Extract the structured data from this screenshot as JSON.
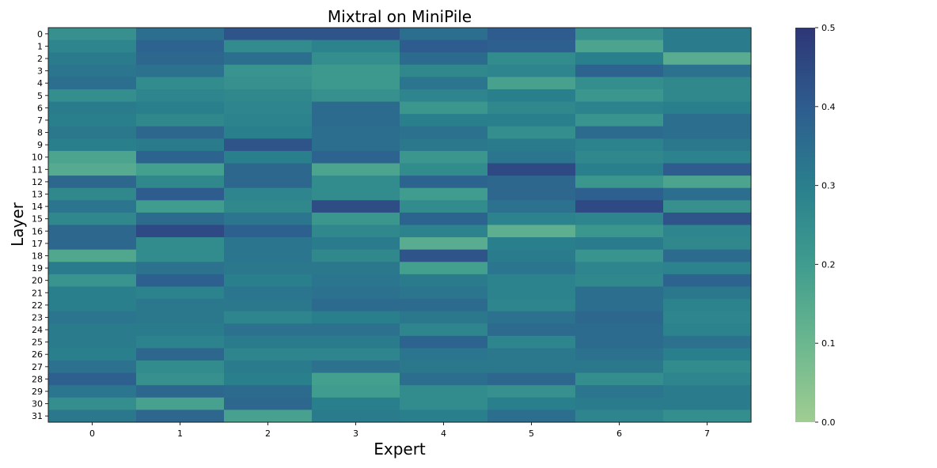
{
  "chart_data": {
    "type": "heatmap",
    "title": "Mixtral on MiniPile",
    "xlabel": "Expert",
    "ylabel": "Layer",
    "x_categories": [
      "0",
      "1",
      "2",
      "3",
      "4",
      "5",
      "6",
      "7"
    ],
    "y_categories": [
      "0",
      "1",
      "2",
      "3",
      "4",
      "5",
      "6",
      "7",
      "8",
      "9",
      "10",
      "11",
      "12",
      "13",
      "14",
      "15",
      "16",
      "17",
      "18",
      "19",
      "20",
      "21",
      "22",
      "23",
      "24",
      "25",
      "26",
      "27",
      "28",
      "29",
      "30",
      "31"
    ],
    "colorscale": {
      "min": 0.0,
      "max": 0.5,
      "ticks": [
        "0.0",
        "0.1",
        "0.2",
        "0.3",
        "0.4",
        "0.5"
      ],
      "low_color": "#a0cd91",
      "high_color": "#2e3676"
    },
    "values": [
      [
        0.24,
        0.35,
        0.42,
        0.42,
        0.35,
        0.4,
        0.24,
        0.31
      ],
      [
        0.28,
        0.38,
        0.26,
        0.29,
        0.4,
        0.39,
        0.17,
        0.31
      ],
      [
        0.31,
        0.37,
        0.35,
        0.25,
        0.36,
        0.26,
        0.3,
        0.14
      ],
      [
        0.33,
        0.34,
        0.23,
        0.21,
        0.27,
        0.28,
        0.38,
        0.34
      ],
      [
        0.35,
        0.26,
        0.24,
        0.21,
        0.33,
        0.18,
        0.25,
        0.27
      ],
      [
        0.25,
        0.28,
        0.27,
        0.24,
        0.28,
        0.3,
        0.22,
        0.27
      ],
      [
        0.31,
        0.3,
        0.28,
        0.36,
        0.22,
        0.27,
        0.29,
        0.3
      ],
      [
        0.3,
        0.27,
        0.29,
        0.36,
        0.3,
        0.3,
        0.23,
        0.35
      ],
      [
        0.32,
        0.37,
        0.3,
        0.35,
        0.34,
        0.25,
        0.36,
        0.35
      ],
      [
        0.3,
        0.31,
        0.42,
        0.35,
        0.32,
        0.31,
        0.29,
        0.32
      ],
      [
        0.17,
        0.38,
        0.3,
        0.38,
        0.22,
        0.33,
        0.27,
        0.29
      ],
      [
        0.15,
        0.19,
        0.37,
        0.17,
        0.26,
        0.45,
        0.3,
        0.4
      ],
      [
        0.37,
        0.27,
        0.37,
        0.26,
        0.38,
        0.37,
        0.22,
        0.17
      ],
      [
        0.27,
        0.4,
        0.28,
        0.26,
        0.2,
        0.37,
        0.39,
        0.35
      ],
      [
        0.33,
        0.2,
        0.27,
        0.44,
        0.26,
        0.34,
        0.45,
        0.24
      ],
      [
        0.27,
        0.36,
        0.33,
        0.22,
        0.38,
        0.29,
        0.28,
        0.42
      ],
      [
        0.37,
        0.45,
        0.39,
        0.27,
        0.29,
        0.13,
        0.22,
        0.28
      ],
      [
        0.37,
        0.26,
        0.33,
        0.31,
        0.14,
        0.3,
        0.31,
        0.27
      ],
      [
        0.16,
        0.26,
        0.33,
        0.27,
        0.42,
        0.31,
        0.23,
        0.36
      ],
      [
        0.31,
        0.34,
        0.32,
        0.32,
        0.19,
        0.33,
        0.28,
        0.29
      ],
      [
        0.23,
        0.39,
        0.3,
        0.33,
        0.31,
        0.29,
        0.27,
        0.38
      ],
      [
        0.3,
        0.29,
        0.33,
        0.34,
        0.33,
        0.29,
        0.35,
        0.32
      ],
      [
        0.3,
        0.32,
        0.32,
        0.36,
        0.36,
        0.28,
        0.35,
        0.29
      ],
      [
        0.33,
        0.32,
        0.28,
        0.3,
        0.32,
        0.34,
        0.37,
        0.28
      ],
      [
        0.31,
        0.31,
        0.34,
        0.34,
        0.28,
        0.36,
        0.36,
        0.29
      ],
      [
        0.31,
        0.29,
        0.31,
        0.31,
        0.38,
        0.28,
        0.36,
        0.34
      ],
      [
        0.3,
        0.37,
        0.28,
        0.28,
        0.33,
        0.32,
        0.34,
        0.3
      ],
      [
        0.34,
        0.26,
        0.31,
        0.34,
        0.32,
        0.32,
        0.32,
        0.26
      ],
      [
        0.39,
        0.24,
        0.3,
        0.19,
        0.35,
        0.37,
        0.25,
        0.28
      ],
      [
        0.33,
        0.37,
        0.36,
        0.2,
        0.26,
        0.24,
        0.33,
        0.31
      ],
      [
        0.25,
        0.18,
        0.37,
        0.3,
        0.26,
        0.3,
        0.31,
        0.31
      ],
      [
        0.32,
        0.37,
        0.18,
        0.31,
        0.3,
        0.35,
        0.28,
        0.25
      ]
    ]
  }
}
